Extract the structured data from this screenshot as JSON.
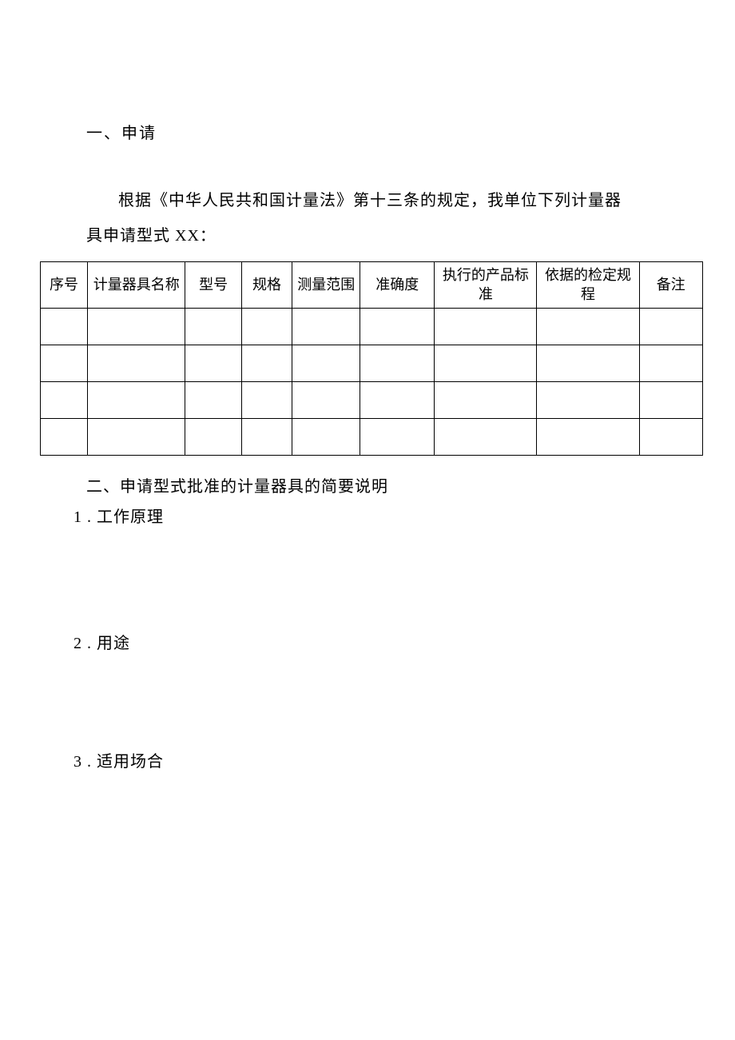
{
  "section1": {
    "title": "一、申请",
    "paragraph_line1": "根据《中华人民共和国计量法》第十三条的规定，我单位下列计量器",
    "paragraph_line2": "具申请型式 XX："
  },
  "table": {
    "headers": {
      "c0": "序号",
      "c1": "计量器具名称",
      "c2": "型号",
      "c3": "规格",
      "c4": "测量范围",
      "c5": "准确度",
      "c6": "执行的产品标准",
      "c7": "依据的检定规程",
      "c8": "备注"
    },
    "rows": [
      {
        "c0": "",
        "c1": "",
        "c2": "",
        "c3": "",
        "c4": "",
        "c5": "",
        "c6": "",
        "c7": "",
        "c8": ""
      },
      {
        "c0": "",
        "c1": "",
        "c2": "",
        "c3": "",
        "c4": "",
        "c5": "",
        "c6": "",
        "c7": "",
        "c8": ""
      },
      {
        "c0": "",
        "c1": "",
        "c2": "",
        "c3": "",
        "c4": "",
        "c5": "",
        "c6": "",
        "c7": "",
        "c8": ""
      },
      {
        "c0": "",
        "c1": "",
        "c2": "",
        "c3": "",
        "c4": "",
        "c5": "",
        "c6": "",
        "c7": "",
        "c8": ""
      }
    ]
  },
  "section2": {
    "title": "二、申请型式批准的计量器具的简要说明",
    "item1": "1 . 工作原理",
    "item2": "2 . 用途",
    "item3": "3 . 适用场合"
  },
  "style": {
    "font_family": "SimSun",
    "text_color": "#000000",
    "background_color": "#ffffff",
    "border_color": "#000000",
    "title_fontsize": 20,
    "body_fontsize": 20,
    "table_fontsize": 18
  }
}
